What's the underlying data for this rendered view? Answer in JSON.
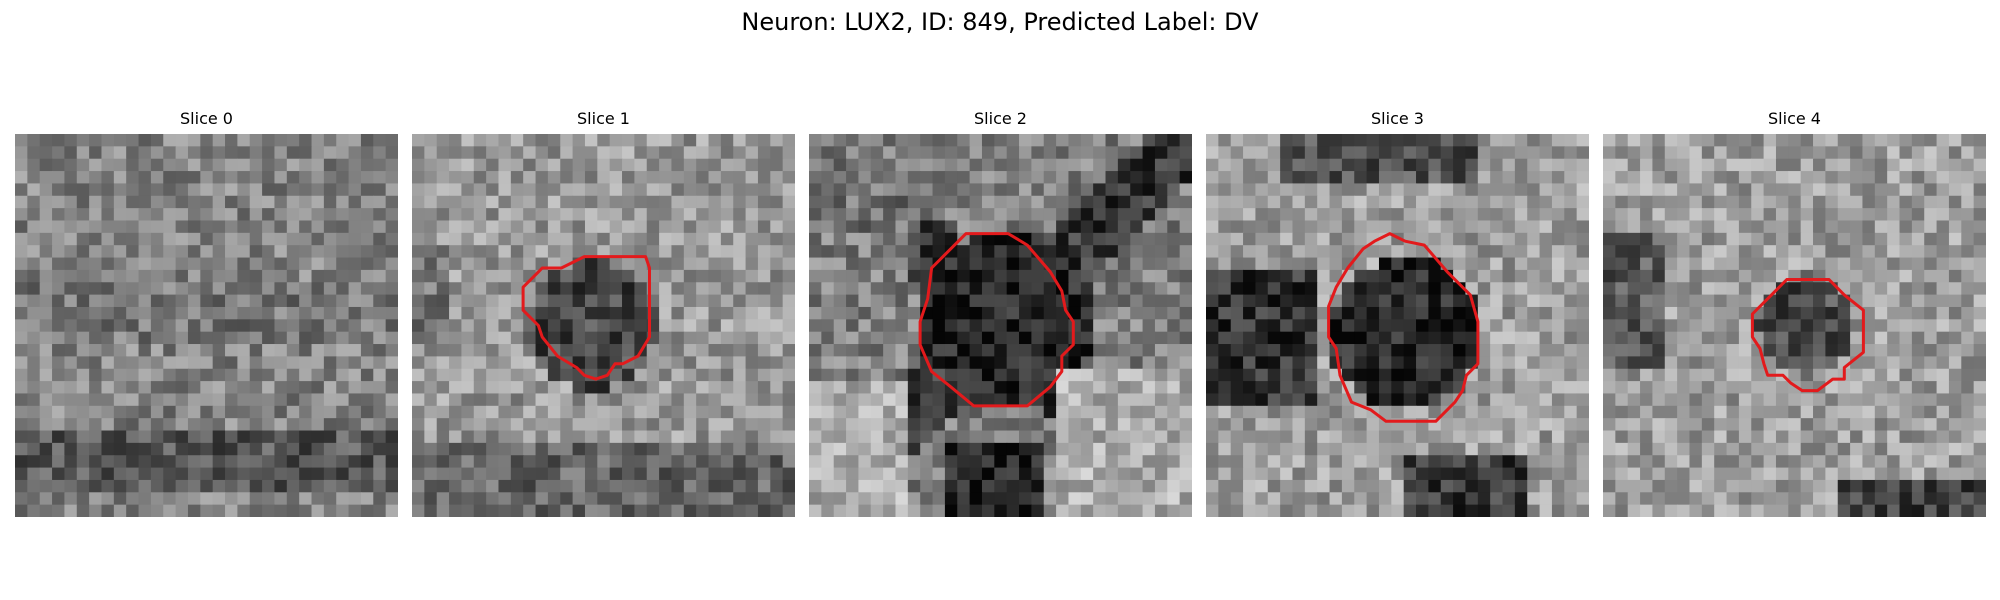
{
  "figure": {
    "title": "Neuron: LUX2, ID: 849, Predicted Label: DV"
  },
  "panels": [
    {
      "title": "Slice 0",
      "has_contour": false
    },
    {
      "title": "Slice 1",
      "has_contour": true
    },
    {
      "title": "Slice 2",
      "has_contour": true
    },
    {
      "title": "Slice 3",
      "has_contour": true
    },
    {
      "title": "Slice 4",
      "has_contour": true
    }
  ],
  "colors": {
    "contour": "#e31a1c",
    "background": "#ffffff"
  }
}
